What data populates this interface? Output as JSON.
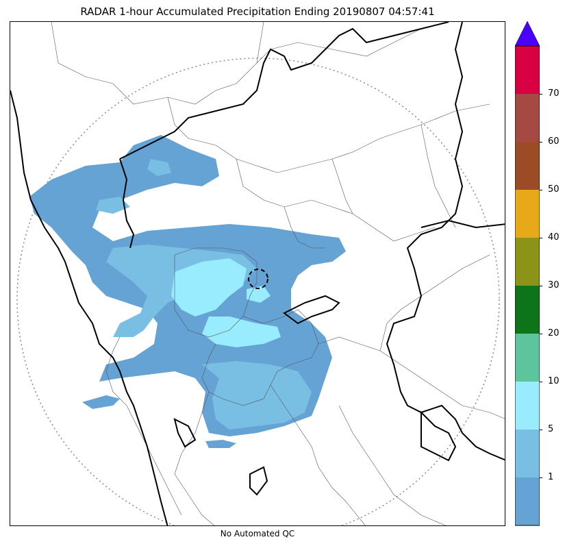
{
  "title": "RADAR 1-hour Accumulated Precipitation Ending 20190807 04:57:41",
  "footnote": "No Automated QC",
  "colorbar": {
    "extend_top_color": "#4a00ff",
    "bins": [
      {
        "from": 0,
        "to": 1,
        "color": "#65a3d5"
      },
      {
        "from": 1,
        "to": 2,
        "color": "#79bfe3"
      },
      {
        "from": 2,
        "to": 5,
        "color": "#98ecfe"
      },
      {
        "from": 5,
        "to": 10,
        "color": "#5dc59d"
      },
      {
        "from": 10,
        "to": 20,
        "color": "#0e7419"
      },
      {
        "from": 20,
        "to": 30,
        "color": "#8c9417"
      },
      {
        "from": 30,
        "to": 40,
        "color": "#e8a919"
      },
      {
        "from": 40,
        "to": 50,
        "color": "#9b4c25"
      },
      {
        "from": 50,
        "to": 60,
        "color": "#a54a43"
      },
      {
        "from": 60,
        "to": 70,
        "color": "#d80043"
      }
    ],
    "tick_labels": [
      "1",
      "5",
      "10",
      "20",
      "30",
      "40",
      "50",
      "60",
      "70"
    ]
  }
}
